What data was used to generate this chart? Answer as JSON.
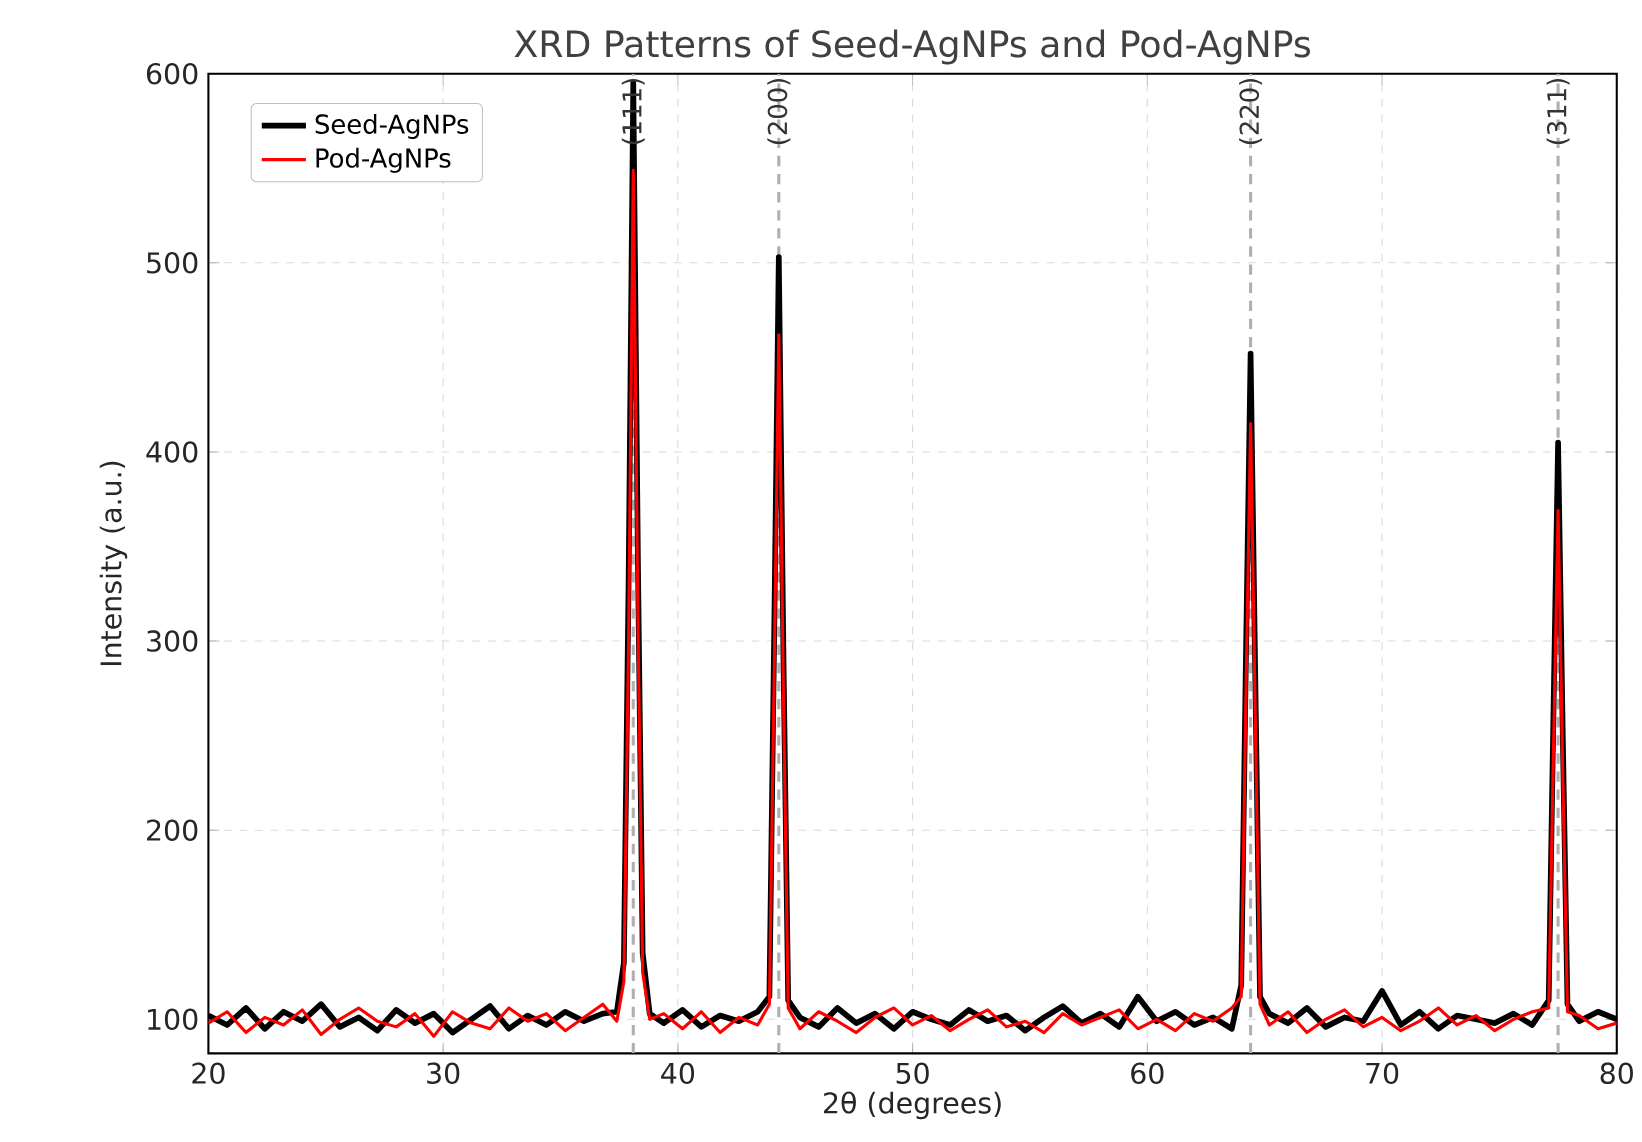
{
  "chart_data": {
    "type": "line",
    "title": "XRD Patterns of Seed-AgNPs and Pod-AgNPs",
    "xlabel": "2θ (degrees)",
    "ylabel": "Intensity (a.u.)",
    "x": [
      20,
      20.8,
      21.6,
      22.4,
      23.2,
      24,
      24.8,
      25.6,
      26.4,
      27.2,
      28,
      28.8,
      29.6,
      30.4,
      31.2,
      32,
      32.8,
      33.6,
      34.4,
      35.2,
      36,
      36.8,
      37.4,
      37.7,
      37.9,
      38.1,
      38.3,
      38.5,
      38.8,
      39.4,
      40.2,
      41,
      41.8,
      42.6,
      43.4,
      43.9,
      44.1,
      44.3,
      44.5,
      44.7,
      45.2,
      46,
      46.8,
      47.6,
      48.4,
      49.2,
      50,
      50.8,
      51.6,
      52.4,
      53.2,
      54,
      54.8,
      55.6,
      56.4,
      57.2,
      58,
      58.8,
      59.6,
      60.4,
      61.2,
      62,
      62.8,
      63.6,
      64,
      64.2,
      64.4,
      64.6,
      64.8,
      65.2,
      66,
      66.8,
      67.6,
      68.4,
      69.2,
      70,
      70.8,
      71.6,
      72.4,
      73.2,
      74,
      74.8,
      75.6,
      76.4,
      77.1,
      77.3,
      77.5,
      77.7,
      77.9,
      78.4,
      79.2,
      80
    ],
    "series": [
      {
        "name": "Seed-AgNPs",
        "color": "#000000",
        "values": [
          102,
          97,
          106,
          95,
          104,
          99,
          108,
          96,
          101,
          94,
          105,
          98,
          103,
          93,
          100,
          107,
          95,
          102,
          97,
          104,
          99,
          103,
          104,
          130,
          330,
          595,
          340,
          135,
          103,
          98,
          105,
          96,
          102,
          99,
          104,
          112,
          300,
          503,
          290,
          110,
          101,
          96,
          106,
          98,
          103,
          95,
          104,
          100,
          97,
          105,
          99,
          102,
          94,
          101,
          107,
          98,
          103,
          96,
          112,
          99,
          104,
          97,
          101,
          95,
          118,
          290,
          452,
          280,
          112,
          103,
          98,
          106,
          96,
          101,
          99,
          115,
          97,
          104,
          95,
          102,
          100,
          98,
          103,
          97,
          110,
          260,
          405,
          250,
          108,
          99,
          104,
          100
        ]
      },
      {
        "name": "Pod-AgNPs",
        "color": "#ff0000",
        "values": [
          98,
          104,
          93,
          101,
          97,
          105,
          92,
          100,
          106,
          99,
          96,
          103,
          91,
          104,
          98,
          95,
          106,
          99,
          103,
          94,
          101,
          108,
          99,
          120,
          300,
          549,
          310,
          125,
          100,
          103,
          95,
          104,
          93,
          101,
          97,
          108,
          280,
          462,
          270,
          106,
          95,
          104,
          99,
          93,
          101,
          106,
          97,
          102,
          94,
          100,
          105,
          96,
          99,
          93,
          103,
          97,
          101,
          105,
          95,
          100,
          94,
          103,
          99,
          106,
          112,
          270,
          415,
          260,
          108,
          97,
          104,
          93,
          100,
          105,
          96,
          101,
          94,
          99,
          106,
          97,
          102,
          94,
          100,
          104,
          106,
          240,
          369,
          230,
          104,
          102,
          95,
          98
        ]
      }
    ],
    "xlim": [
      20,
      80
    ],
    "ylim": [
      82,
      600
    ],
    "xticks": [
      20,
      30,
      40,
      50,
      60,
      70,
      80
    ],
    "yticks": [
      100,
      200,
      300,
      400,
      500,
      600
    ],
    "ref_lines": [
      {
        "axis": "x",
        "value": 38.1,
        "color": "#b0b0b0",
        "line_style": "dashed"
      },
      {
        "axis": "x",
        "value": 44.3,
        "color": "#b0b0b0",
        "line_style": "dashed"
      },
      {
        "axis": "x",
        "value": 64.4,
        "color": "#b0b0b0",
        "line_style": "dashed"
      },
      {
        "axis": "x",
        "value": 77.5,
        "color": "#b0b0b0",
        "line_style": "dashed"
      }
    ],
    "annotations": [
      {
        "text": "(111)",
        "x": 38.1,
        "y": 600
      },
      {
        "text": "(200)",
        "x": 44.3,
        "y": 600
      },
      {
        "text": "(220)",
        "x": 64.4,
        "y": 600
      },
      {
        "text": "(311)",
        "x": 77.5,
        "y": 600
      }
    ],
    "grid": true,
    "legend": "top left",
    "line_style": "solid"
  }
}
